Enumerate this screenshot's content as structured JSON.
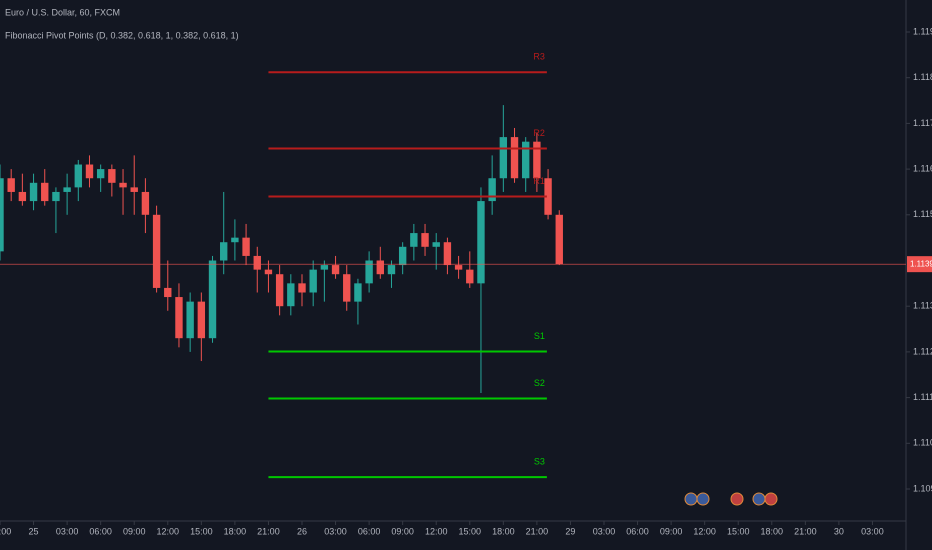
{
  "chart_data": {
    "type": "candlestick",
    "title": "Euro / U.S. Dollar, 60, FXCM",
    "subtitle": "Fibonacci Pivot Points (D, 0.382, 0.618, 1, 0.382, 0.618, 1)",
    "up_color": "#26a69a",
    "down_color": "#ef5350",
    "open": [
      1.1142,
      1.1158,
      1.1155,
      1.1153,
      1.1157,
      1.1153,
      1.1155,
      1.1156,
      1.1161,
      1.1158,
      1.116,
      1.1157,
      1.1156,
      1.1155,
      1.115,
      1.1134,
      1.1132,
      1.1123,
      1.1131,
      1.1123,
      1.114,
      1.1144,
      1.1145,
      1.1141,
      1.1138,
      1.1137,
      1.113,
      1.1135,
      1.1133,
      1.1138,
      1.1139,
      1.1137,
      1.1131,
      1.1135,
      1.114,
      1.1137,
      1.1139,
      1.1143,
      1.1146,
      1.1143,
      1.1144,
      1.1139,
      1.1138,
      1.1135,
      1.1153,
      1.1158,
      1.1167,
      1.1158,
      1.1166,
      1.1158,
      1.115
    ],
    "high": [
      1.1161,
      1.116,
      1.1159,
      1.1159,
      1.116,
      1.1156,
      1.1159,
      1.1162,
      1.1163,
      1.1161,
      1.1161,
      1.116,
      1.1163,
      1.1158,
      1.1152,
      1.114,
      1.1135,
      1.1133,
      1.1133,
      1.1141,
      1.1155,
      1.1149,
      1.1148,
      1.1143,
      1.114,
      1.1139,
      1.1137,
      1.1137,
      1.114,
      1.114,
      1.1141,
      1.1139,
      1.1136,
      1.1142,
      1.1143,
      1.114,
      1.1144,
      1.1148,
      1.1148,
      1.1146,
      1.1145,
      1.1141,
      1.1142,
      1.1156,
      1.1163,
      1.1174,
      1.1169,
      1.1167,
      1.1168,
      1.116,
      1.1151
    ],
    "low": [
      1.114,
      1.1153,
      1.1152,
      1.1151,
      1.1152,
      1.1146,
      1.115,
      1.1153,
      1.1156,
      1.1155,
      1.1154,
      1.115,
      1.115,
      1.1146,
      1.1133,
      1.1129,
      1.1121,
      1.112,
      1.1118,
      1.1122,
      1.1137,
      1.114,
      1.1139,
      1.1133,
      1.1133,
      1.1128,
      1.1128,
      1.113,
      1.113,
      1.1131,
      1.1136,
      1.1129,
      1.1126,
      1.1133,
      1.1136,
      1.1134,
      1.1137,
      1.114,
      1.1141,
      1.1138,
      1.1137,
      1.1136,
      1.1134,
      1.1111,
      1.115,
      1.1155,
      1.1157,
      1.1155,
      1.1155,
      1.1149,
      1.1139
    ],
    "close": [
      1.1158,
      1.1155,
      1.1153,
      1.1157,
      1.1153,
      1.1155,
      1.1156,
      1.1161,
      1.1158,
      1.116,
      1.1157,
      1.1156,
      1.1155,
      1.115,
      1.1134,
      1.1132,
      1.1123,
      1.1131,
      1.1123,
      1.114,
      1.1144,
      1.1145,
      1.1141,
      1.1138,
      1.1137,
      1.113,
      1.1135,
      1.1133,
      1.1138,
      1.1139,
      1.1137,
      1.1131,
      1.1135,
      1.114,
      1.1137,
      1.1139,
      1.1143,
      1.1146,
      1.1143,
      1.1144,
      1.1139,
      1.1138,
      1.1135,
      1.1153,
      1.1158,
      1.1167,
      1.1158,
      1.1166,
      1.1158,
      1.115,
      1.11392
    ],
    "x_start": -3,
    "xlim": [
      -3,
      78
    ],
    "xticks": [
      {
        "value": -3,
        "label": "21:00"
      },
      {
        "value": 0,
        "label": "25"
      },
      {
        "value": 3,
        "label": "03:00"
      },
      {
        "value": 6,
        "label": "06:00"
      },
      {
        "value": 9,
        "label": "09:00"
      },
      {
        "value": 12,
        "label": "12:00"
      },
      {
        "value": 15,
        "label": "15:00"
      },
      {
        "value": 18,
        "label": "18:00"
      },
      {
        "value": 21,
        "label": "21:00"
      },
      {
        "value": 24,
        "label": "26"
      },
      {
        "value": 27,
        "label": "03:00"
      },
      {
        "value": 30,
        "label": "06:00"
      },
      {
        "value": 33,
        "label": "09:00"
      },
      {
        "value": 36,
        "label": "12:00"
      },
      {
        "value": 39,
        "label": "15:00"
      },
      {
        "value": 42,
        "label": "18:00"
      },
      {
        "value": 45,
        "label": "21:00"
      },
      {
        "value": 48,
        "label": "29"
      },
      {
        "value": 51,
        "label": "03:00"
      },
      {
        "value": 54,
        "label": "06:00"
      },
      {
        "value": 57,
        "label": "09:00"
      },
      {
        "value": 60,
        "label": "12:00"
      },
      {
        "value": 63,
        "label": "15:00"
      },
      {
        "value": 66,
        "label": "18:00"
      },
      {
        "value": 69,
        "label": "21:00"
      },
      {
        "value": 72,
        "label": "30"
      },
      {
        "value": 75,
        "label": "03:00"
      }
    ],
    "ylim": [
      1.1083,
      1.1197
    ],
    "yticks": [
      {
        "value": 1.109,
        "label": "1.10900"
      },
      {
        "value": 1.11,
        "label": "1.11000"
      },
      {
        "value": 1.111,
        "label": "1.11100"
      },
      {
        "value": 1.112,
        "label": "1.11200"
      },
      {
        "value": 1.113,
        "label": "1.11300"
      },
      {
        "value": 1.115,
        "label": "1.11500"
      },
      {
        "value": 1.116,
        "label": "1.11600"
      },
      {
        "value": 1.117,
        "label": "1.11700"
      },
      {
        "value": 1.118,
        "label": "1.11800"
      },
      {
        "value": 1.119,
        "label": "1.11900"
      }
    ],
    "last_price": 1.11392,
    "pivot_range": [
      21,
      45
    ],
    "pivots": [
      {
        "name": "R3",
        "value": 1.11812,
        "color": "#b71c1c"
      },
      {
        "name": "R2",
        "value": 1.11645,
        "color": "#b71c1c"
      },
      {
        "name": "R1",
        "value": 1.1154,
        "color": "#b71c1c"
      },
      {
        "name": "S1",
        "value": 1.11201,
        "color": "#00c800"
      },
      {
        "name": "S2",
        "value": 1.11098,
        "color": "#00c800"
      },
      {
        "name": "S3",
        "value": 1.10926,
        "color": "#00c800"
      }
    ]
  }
}
